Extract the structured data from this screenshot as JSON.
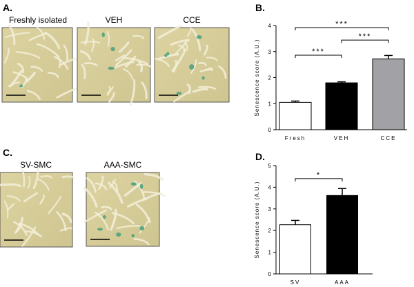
{
  "figure": {
    "A": {
      "label": "A.",
      "captions": [
        "Freshly isolated",
        "VEH",
        "CCE"
      ]
    },
    "B": {
      "label": "B."
    },
    "C": {
      "label": "C.",
      "captions": [
        "SV-SMC",
        "AAA-SMC"
      ]
    },
    "D": {
      "label": "D."
    }
  },
  "chart_data": [
    {
      "type": "bar",
      "y_label": "Senescence score (A.U.)",
      "categories": [
        "Fresh",
        "VEH",
        "CCE"
      ],
      "values": [
        1.05,
        1.8,
        2.72
      ],
      "errors": [
        0.05,
        0.04,
        0.13
      ],
      "colors": [
        "#ffffff",
        "#000000",
        "#a1a1a6"
      ],
      "ylim": [
        0,
        4
      ],
      "yticks": [
        0,
        1,
        2,
        3,
        4
      ],
      "annotations": [
        "***",
        "***",
        "***"
      ]
    },
    {
      "type": "bar",
      "y_label": "Senescence score (A.U.)",
      "categories": [
        "SV",
        "AAA"
      ],
      "values": [
        2.27,
        3.62
      ],
      "errors": [
        0.2,
        0.32
      ],
      "colors": [
        "#ffffff",
        "#000000"
      ],
      "ylim": [
        0,
        5
      ],
      "yticks": [
        0,
        1,
        2,
        3,
        4,
        5
      ],
      "annotations": [
        "*"
      ]
    }
  ]
}
